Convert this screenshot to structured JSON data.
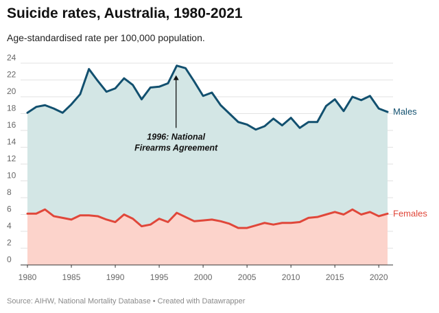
{
  "chart_data": {
    "type": "area",
    "title": "Suicide rates, Australia, 1980-2021",
    "subtitle": "Age-standardised rate per 100,000 population.",
    "source": "Source: AIHW, National Mortality Database • Created with Datawrapper",
    "xlabel": "",
    "ylabel": "",
    "xlim": [
      1980,
      2021
    ],
    "ylim": [
      0,
      24
    ],
    "x_ticks": [
      1980,
      1985,
      1990,
      1995,
      2000,
      2005,
      2010,
      2015,
      2020
    ],
    "y_ticks": [
      0,
      2,
      4,
      6,
      8,
      10,
      12,
      14,
      16,
      18,
      20,
      22,
      24
    ],
    "grid": true,
    "x": [
      1980,
      1981,
      1982,
      1983,
      1984,
      1985,
      1986,
      1987,
      1988,
      1989,
      1990,
      1991,
      1992,
      1993,
      1994,
      1995,
      1996,
      1997,
      1998,
      1999,
      2000,
      2001,
      2002,
      2003,
      2004,
      2005,
      2006,
      2007,
      2008,
      2009,
      2010,
      2011,
      2012,
      2013,
      2014,
      2015,
      2016,
      2017,
      2018,
      2019,
      2020,
      2021
    ],
    "series": [
      {
        "name": "Males",
        "color": "#12506f",
        "fill": "#d3e6e5",
        "values": [
          18.1,
          18.8,
          19.0,
          18.6,
          18.1,
          19.1,
          20.3,
          23.3,
          21.9,
          20.6,
          21.0,
          22.2,
          21.4,
          19.7,
          21.1,
          21.2,
          21.6,
          23.7,
          23.4,
          21.8,
          20.1,
          20.5,
          19.0,
          18.0,
          17.0,
          16.7,
          16.1,
          16.5,
          17.4,
          16.6,
          17.5,
          16.3,
          17.0,
          17.0,
          18.9,
          19.7,
          18.3,
          20.0,
          19.6,
          20.1,
          18.6,
          18.2
        ]
      },
      {
        "name": "Females",
        "color": "#e0473a",
        "fill": "#fcd3cb",
        "values": [
          6.1,
          6.1,
          6.6,
          5.8,
          5.6,
          5.4,
          5.9,
          5.9,
          5.8,
          5.4,
          5.1,
          6.0,
          5.5,
          4.6,
          4.8,
          5.5,
          5.1,
          6.2,
          5.7,
          5.2,
          5.3,
          5.4,
          5.2,
          4.9,
          4.4,
          4.4,
          4.7,
          5.0,
          4.8,
          5.0,
          5.0,
          5.1,
          5.6,
          5.7,
          6.0,
          6.3,
          6.0,
          6.6,
          6.0,
          6.3,
          5.8,
          6.1
        ]
      }
    ],
    "annotations": [
      {
        "x": 1997,
        "y": 23.7,
        "lines": [
          "1996: National",
          "Firearms Agreement"
        ]
      }
    ]
  }
}
